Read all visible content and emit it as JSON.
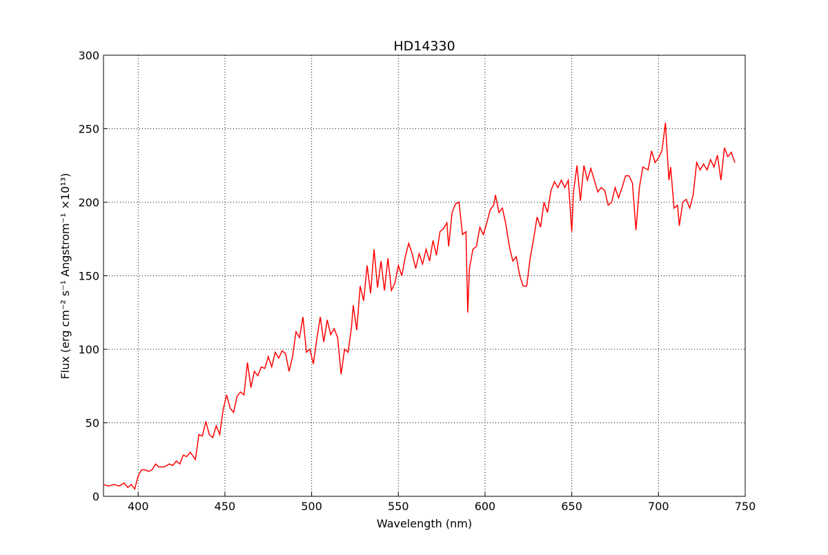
{
  "chart_data": {
    "type": "line",
    "title": "HD14330",
    "x_label": "Wavelength (nm)",
    "y_label": "Flux  (erg cm⁻² s⁻¹  Angstrom⁻¹  ×10¹³)",
    "xlim": [
      380,
      750
    ],
    "ylim": [
      0,
      300
    ],
    "xticks": [
      400,
      450,
      500,
      550,
      600,
      650,
      700,
      750
    ],
    "yticks": [
      0,
      50,
      100,
      150,
      200,
      250,
      300
    ],
    "grid": true,
    "series": [
      {
        "color": "#ff0000",
        "x": [
          380,
          383,
          386,
          389,
          392,
          394,
          396,
          398,
          400,
          402,
          404,
          406,
          408,
          410,
          412,
          415,
          418,
          420,
          422,
          424,
          426,
          428,
          430,
          433,
          435,
          437,
          439,
          441,
          443,
          445,
          447,
          449,
          451,
          453,
          455,
          457,
          459,
          461,
          463,
          465,
          467,
          469,
          471,
          473,
          475,
          477,
          479,
          481,
          483,
          485,
          487,
          489,
          491,
          493,
          495,
          497,
          499,
          501,
          503,
          505,
          507,
          509,
          511,
          513,
          515,
          517,
          519,
          521,
          523,
          524,
          526,
          528,
          530,
          532,
          534,
          536,
          538,
          540,
          542,
          544,
          546,
          548,
          550,
          552,
          554,
          556,
          558,
          560,
          562,
          564,
          566,
          568,
          570,
          572,
          574,
          576,
          578,
          579,
          581,
          583,
          585,
          587,
          589,
          590,
          591,
          593,
          595,
          597,
          599,
          601,
          603,
          605,
          606,
          608,
          610,
          612,
          614,
          616,
          618,
          620,
          622,
          624,
          626,
          628,
          630,
          632,
          634,
          636,
          638,
          640,
          642,
          644,
          646,
          648,
          650,
          651,
          653,
          655,
          657,
          659,
          661,
          663,
          665,
          667,
          669,
          671,
          673,
          675,
          677,
          679,
          681,
          683,
          685,
          687,
          689,
          691,
          694,
          696,
          698,
          700,
          702,
          704,
          706,
          707,
          709,
          711,
          712,
          714,
          716,
          718,
          720,
          722,
          724,
          726,
          728,
          730,
          732,
          734,
          736,
          738,
          740,
          742,
          744
        ],
        "values": [
          8,
          7,
          8,
          7,
          9,
          6,
          8,
          5,
          14,
          18,
          18,
          17,
          18,
          22,
          20,
          20,
          22,
          21,
          24,
          22,
          28,
          27,
          30,
          25,
          42,
          41,
          51,
          42,
          40,
          48,
          42,
          59,
          69,
          60,
          57,
          68,
          71,
          69,
          91,
          74,
          85,
          82,
          88,
          87,
          95,
          88,
          98,
          94,
          99,
          97,
          85,
          95,
          112,
          108,
          122,
          98,
          100,
          90,
          107,
          122,
          105,
          120,
          110,
          114,
          108,
          83,
          100,
          98,
          115,
          130,
          113,
          143,
          133,
          157,
          138,
          168,
          142,
          160,
          140,
          162,
          140,
          145,
          157,
          150,
          163,
          172,
          165,
          155,
          165,
          158,
          168,
          160,
          174,
          164,
          180,
          182,
          186,
          170,
          193,
          199,
          200,
          178,
          180,
          125,
          155,
          168,
          170,
          183,
          178,
          186,
          195,
          198,
          205,
          193,
          196,
          185,
          170,
          160,
          163,
          150,
          143,
          143,
          162,
          175,
          190,
          183,
          200,
          193,
          208,
          214,
          210,
          215,
          210,
          215,
          180,
          207,
          225,
          201,
          225,
          215,
          223,
          215,
          207,
          210,
          208,
          198,
          200,
          210,
          203,
          210,
          218,
          218,
          213,
          181,
          210,
          224,
          222,
          235,
          227,
          230,
          235,
          254,
          215,
          224,
          196,
          198,
          184,
          200,
          202,
          196,
          205,
          227,
          222,
          226,
          222,
          229,
          224,
          232,
          215,
          237,
          231,
          234,
          227
        ]
      }
    ]
  }
}
